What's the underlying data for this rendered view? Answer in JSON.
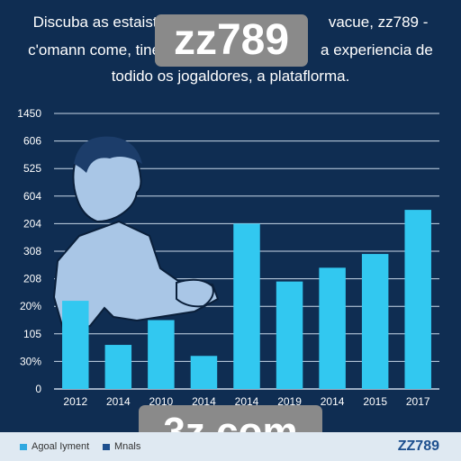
{
  "intro": {
    "line1_left": "Discuba as estaistic",
    "line1_right": "vacue, zz789  -",
    "line2_left": "c'omann come, tine",
    "line2_right": "a experiencia de",
    "line3": "todido os jogaldores,  a plataflorma."
  },
  "watermarks": {
    "top": "zz789",
    "bottom": "3z.com"
  },
  "chart_data": {
    "type": "bar",
    "categories": [
      "2012",
      "2014",
      "2010",
      "2014",
      "2014",
      "2019",
      "2014",
      "2015",
      "2017"
    ],
    "values": [
      3.2,
      1.6,
      2.5,
      1.2,
      6.0,
      3.9,
      4.4,
      4.9,
      6.5
    ],
    "y_tick_labels": [
      "0",
      "30%",
      "105",
      "20%",
      "208",
      "308",
      "204",
      "604",
      "525",
      "606",
      "1450"
    ],
    "ylim": [
      0,
      10
    ],
    "grid": true,
    "bar_color": "#32c8f0",
    "legend_position": "bottom-left"
  },
  "legend": {
    "items": [
      {
        "label": "Agoal Iyment",
        "color": "#2fa8e0"
      },
      {
        "label": "Mnals",
        "color": "#1d4f8e"
      }
    ]
  },
  "footer": {
    "brand": "ZZ789"
  },
  "colors": {
    "background": "#0f2d52",
    "grid": "#c8d8e8",
    "axis_text": "#ffffff",
    "figure_fill": "#a9c6e6",
    "figure_stroke": "#0a1f3a"
  }
}
